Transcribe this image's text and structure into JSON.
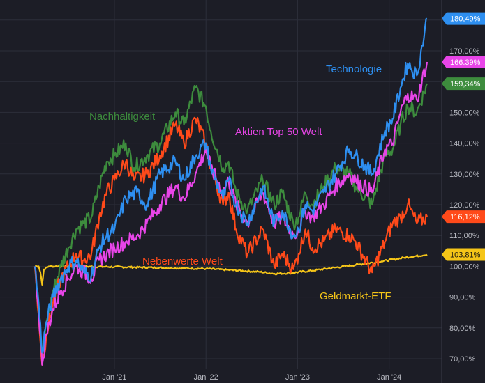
{
  "chart_data": {
    "type": "line",
    "title": "",
    "xlabel": "",
    "ylabel": "",
    "x_range": [
      "2020-02-19",
      "2024-05-31"
    ],
    "ylim": [
      66,
      183
    ],
    "y_ticks": [
      70,
      80,
      90,
      100,
      110,
      120,
      130,
      140,
      150,
      160,
      170
    ],
    "y_tick_labels": [
      "70,00%",
      "80,00%",
      "90,00%",
      "100,00%",
      "110,00%",
      "120,00%",
      "130,00%",
      "140,00%",
      "150,00%",
      "160,00%",
      "170,00%"
    ],
    "x_ticks": [
      {
        "date": "2021-01-01",
        "label": "Jan '21"
      },
      {
        "date": "2022-01-01",
        "label": "Jan '22"
      },
      {
        "date": "2023-01-01",
        "label": "Jan '23"
      },
      {
        "date": "2024-01-01",
        "label": "Jan '24"
      }
    ],
    "grid": true,
    "y_axis_side": "right",
    "series": [
      {
        "name": "Technologie",
        "color": "#2e8ff0",
        "end_label": "180,49%",
        "points": [
          [
            "2020-02-19",
            100
          ],
          [
            "2020-03-05",
            88
          ],
          [
            "2020-03-19",
            72
          ],
          [
            "2020-04-05",
            82
          ],
          [
            "2020-05-01",
            90
          ],
          [
            "2020-06-01",
            96
          ],
          [
            "2020-07-01",
            100
          ],
          [
            "2020-08-01",
            102
          ],
          [
            "2020-09-01",
            98
          ],
          [
            "2020-10-01",
            97
          ],
          [
            "2020-11-01",
            106
          ],
          [
            "2020-12-01",
            110
          ],
          [
            "2021-01-01",
            112
          ],
          [
            "2021-02-15",
            122
          ],
          [
            "2021-04-01",
            124
          ],
          [
            "2021-05-10",
            120
          ],
          [
            "2021-07-01",
            130
          ],
          [
            "2021-09-01",
            134
          ],
          [
            "2021-10-05",
            128
          ],
          [
            "2021-11-20",
            136
          ],
          [
            "2021-12-31",
            140
          ],
          [
            "2022-01-20",
            132
          ],
          [
            "2022-03-10",
            122
          ],
          [
            "2022-04-01",
            128
          ],
          [
            "2022-05-01",
            120
          ],
          [
            "2022-06-15",
            114
          ],
          [
            "2022-08-15",
            126
          ],
          [
            "2022-09-30",
            114
          ],
          [
            "2022-11-01",
            118
          ],
          [
            "2022-12-15",
            110
          ],
          [
            "2023-01-05",
            112
          ],
          [
            "2023-02-01",
            120
          ],
          [
            "2023-03-01",
            118
          ],
          [
            "2023-04-15",
            124
          ],
          [
            "2023-06-01",
            130
          ],
          [
            "2023-07-25",
            138
          ],
          [
            "2023-08-20",
            136
          ],
          [
            "2023-10-25",
            130
          ],
          [
            "2023-12-15",
            144
          ],
          [
            "2024-01-15",
            148
          ],
          [
            "2024-02-15",
            158
          ],
          [
            "2024-03-15",
            166
          ],
          [
            "2024-04-20",
            162
          ],
          [
            "2024-05-31",
            180.49
          ]
        ]
      },
      {
        "name": "Aktien Top 50 Welt",
        "color": "#e845e8",
        "end_label": "166.39%",
        "points": [
          [
            "2020-02-19",
            100
          ],
          [
            "2020-03-05",
            86
          ],
          [
            "2020-03-19",
            68
          ],
          [
            "2020-04-05",
            78
          ],
          [
            "2020-05-01",
            86
          ],
          [
            "2020-06-01",
            92
          ],
          [
            "2020-07-01",
            96
          ],
          [
            "2020-08-01",
            100
          ],
          [
            "2020-09-01",
            98
          ],
          [
            "2020-10-01",
            96
          ],
          [
            "2020-11-01",
            102
          ],
          [
            "2020-12-01",
            104
          ],
          [
            "2021-01-01",
            106
          ],
          [
            "2021-02-15",
            108
          ],
          [
            "2021-04-01",
            110
          ],
          [
            "2021-05-10",
            114
          ],
          [
            "2021-07-01",
            120
          ],
          [
            "2021-09-01",
            126
          ],
          [
            "2021-10-05",
            122
          ],
          [
            "2021-11-20",
            130
          ],
          [
            "2021-12-31",
            138
          ],
          [
            "2022-01-20",
            132
          ],
          [
            "2022-03-10",
            124
          ],
          [
            "2022-04-01",
            128
          ],
          [
            "2022-05-01",
            120
          ],
          [
            "2022-06-15",
            114
          ],
          [
            "2022-08-15",
            124
          ],
          [
            "2022-09-30",
            114
          ],
          [
            "2022-11-01",
            116
          ],
          [
            "2022-12-15",
            110
          ],
          [
            "2023-01-05",
            112
          ],
          [
            "2023-02-01",
            118
          ],
          [
            "2023-03-01",
            116
          ],
          [
            "2023-04-15",
            120
          ],
          [
            "2023-06-01",
            126
          ],
          [
            "2023-07-25",
            130
          ],
          [
            "2023-08-20",
            128
          ],
          [
            "2023-10-25",
            124
          ],
          [
            "2023-12-15",
            138
          ],
          [
            "2024-01-15",
            140
          ],
          [
            "2024-02-15",
            150
          ],
          [
            "2024-03-15",
            156
          ],
          [
            "2024-04-20",
            154
          ],
          [
            "2024-05-31",
            166.39
          ]
        ]
      },
      {
        "name": "Nachhaltigkeit",
        "color": "#3d8c3d",
        "end_label": "159,34%",
        "points": [
          [
            "2020-02-19",
            100
          ],
          [
            "2020-03-05",
            86
          ],
          [
            "2020-03-19",
            70
          ],
          [
            "2020-04-05",
            82
          ],
          [
            "2020-05-01",
            92
          ],
          [
            "2020-06-01",
            100
          ],
          [
            "2020-07-01",
            106
          ],
          [
            "2020-08-01",
            112
          ],
          [
            "2020-09-01",
            114
          ],
          [
            "2020-10-01",
            116
          ],
          [
            "2020-11-01",
            126
          ],
          [
            "2020-12-01",
            134
          ],
          [
            "2021-01-01",
            136
          ],
          [
            "2021-02-15",
            140
          ],
          [
            "2021-03-20",
            132
          ],
          [
            "2021-05-10",
            136
          ],
          [
            "2021-07-01",
            140
          ],
          [
            "2021-09-01",
            150
          ],
          [
            "2021-10-05",
            146
          ],
          [
            "2021-11-20",
            158
          ],
          [
            "2021-12-31",
            152
          ],
          [
            "2022-01-20",
            144
          ],
          [
            "2022-03-10",
            132
          ],
          [
            "2022-04-01",
            134
          ],
          [
            "2022-05-01",
            124
          ],
          [
            "2022-06-15",
            118
          ],
          [
            "2022-08-15",
            128
          ],
          [
            "2022-09-30",
            120
          ],
          [
            "2022-11-01",
            124
          ],
          [
            "2022-12-15",
            114
          ],
          [
            "2023-01-05",
            116
          ],
          [
            "2023-02-01",
            124
          ],
          [
            "2023-03-01",
            120
          ],
          [
            "2023-04-15",
            126
          ],
          [
            "2023-06-01",
            132
          ],
          [
            "2023-07-25",
            130
          ],
          [
            "2023-08-20",
            126
          ],
          [
            "2023-10-25",
            120
          ],
          [
            "2023-12-15",
            136
          ],
          [
            "2024-01-15",
            138
          ],
          [
            "2024-02-15",
            146
          ],
          [
            "2024-03-15",
            152
          ],
          [
            "2024-04-20",
            150
          ],
          [
            "2024-05-31",
            159.34
          ]
        ]
      },
      {
        "name": "Nebenwerte Welt",
        "color": "#ff4a1a",
        "end_label": "116,12%",
        "points": [
          [
            "2020-02-19",
            100
          ],
          [
            "2020-03-05",
            84
          ],
          [
            "2020-03-19",
            68
          ],
          [
            "2020-04-05",
            78
          ],
          [
            "2020-05-01",
            88
          ],
          [
            "2020-06-01",
            96
          ],
          [
            "2020-07-01",
            100
          ],
          [
            "2020-08-01",
            104
          ],
          [
            "2020-09-01",
            102
          ],
          [
            "2020-10-01",
            104
          ],
          [
            "2020-11-01",
            116
          ],
          [
            "2020-12-01",
            124
          ],
          [
            "2021-01-01",
            128
          ],
          [
            "2021-02-15",
            134
          ],
          [
            "2021-03-20",
            128
          ],
          [
            "2021-05-10",
            130
          ],
          [
            "2021-07-01",
            136
          ],
          [
            "2021-09-01",
            146
          ],
          [
            "2021-10-05",
            140
          ],
          [
            "2021-11-20",
            148
          ],
          [
            "2021-12-31",
            140
          ],
          [
            "2022-01-20",
            132
          ],
          [
            "2022-03-10",
            120
          ],
          [
            "2022-04-01",
            124
          ],
          [
            "2022-05-01",
            112
          ],
          [
            "2022-06-15",
            104
          ],
          [
            "2022-08-15",
            112
          ],
          [
            "2022-09-30",
            100
          ],
          [
            "2022-11-01",
            104
          ],
          [
            "2022-12-15",
            99
          ],
          [
            "2023-01-05",
            104
          ],
          [
            "2023-02-01",
            112
          ],
          [
            "2023-03-01",
            106
          ],
          [
            "2023-04-15",
            108
          ],
          [
            "2023-06-01",
            112
          ],
          [
            "2023-07-25",
            110
          ],
          [
            "2023-08-20",
            108
          ],
          [
            "2023-10-25",
            98
          ],
          [
            "2023-12-15",
            108
          ],
          [
            "2024-01-15",
            114
          ],
          [
            "2024-02-15",
            116
          ],
          [
            "2024-03-15",
            120
          ],
          [
            "2024-04-20",
            114
          ],
          [
            "2024-05-31",
            116.12
          ]
        ]
      },
      {
        "name": "Geldmarkt-ETF",
        "color": "#f5c518",
        "end_label": "103,81%",
        "points": [
          [
            "2020-02-19",
            100
          ],
          [
            "2020-03-05",
            100
          ],
          [
            "2020-03-12",
            98
          ],
          [
            "2020-03-19",
            94
          ],
          [
            "2020-03-26",
            99
          ],
          [
            "2020-04-15",
            100
          ],
          [
            "2020-08-01",
            100
          ],
          [
            "2021-01-01",
            99.8
          ],
          [
            "2021-06-01",
            99.6
          ],
          [
            "2022-01-01",
            99.2
          ],
          [
            "2022-04-01",
            98.8
          ],
          [
            "2022-08-01",
            98.2
          ],
          [
            "2022-10-01",
            97.6
          ],
          [
            "2022-12-01",
            97.8
          ],
          [
            "2023-03-01",
            98.6
          ],
          [
            "2023-06-01",
            99.6
          ],
          [
            "2023-09-01",
            100.6
          ],
          [
            "2023-12-01",
            101.6
          ],
          [
            "2024-03-01",
            102.8
          ],
          [
            "2024-05-31",
            103.81
          ]
        ]
      }
    ],
    "labels": [
      {
        "text": "Technologie",
        "series": "Technologie"
      },
      {
        "text": "Nachhaltigkeit",
        "series": "Nachhaltigkeit"
      },
      {
        "text": "Aktien Top 50 Welt",
        "series": "Aktien Top 50 Welt"
      },
      {
        "text": "Nebenwerte Welt",
        "series": "Nebenwerte Welt"
      },
      {
        "text": "Geldmarkt-ETF",
        "series": "Geldmarkt-ETF"
      }
    ]
  }
}
